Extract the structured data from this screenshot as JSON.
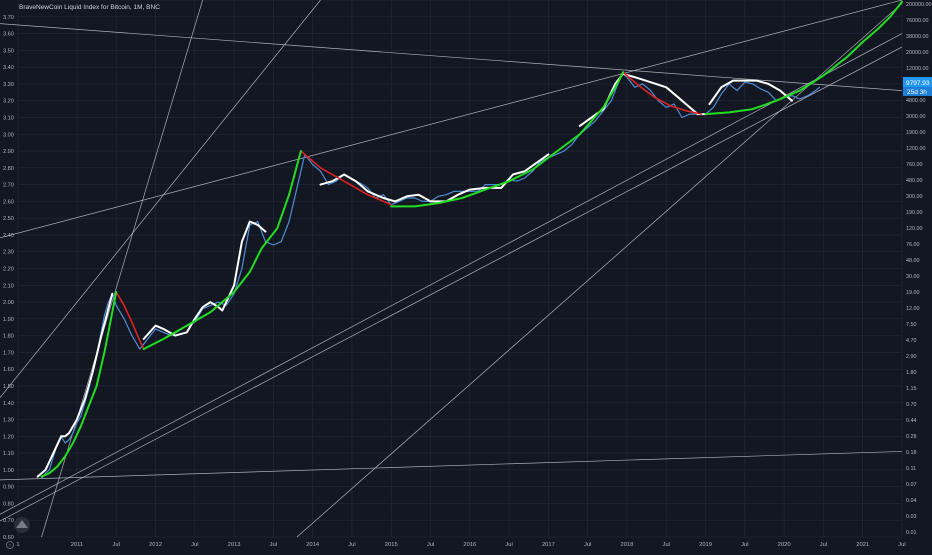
{
  "chart_data": {
    "type": "line",
    "title": "BraveNewCoin Liquid Index for Bitcoin, 1M, BNC",
    "subtitle": "",
    "xlabel": "",
    "ylabel": "",
    "grid": true,
    "colors": {
      "background": "#131722",
      "grid": "#232a3a",
      "axis_text": "#b2b5be",
      "price_line": "#4c8fd6",
      "fit_white": "#ffffff",
      "fit_green": "#22dd22",
      "fit_red": "#dd2222",
      "trendline": "#c8cbd2",
      "price_label_bg": "#2196f3"
    },
    "x_ticks": [
      {
        "label": "1",
        "t": 2010.25
      },
      {
        "label": "2011",
        "t": 2011.0
      },
      {
        "label": "Jul",
        "t": 2011.5
      },
      {
        "label": "2012",
        "t": 2012.0
      },
      {
        "label": "Jul",
        "t": 2012.5
      },
      {
        "label": "2013",
        "t": 2013.0
      },
      {
        "label": "Jul",
        "t": 2013.5
      },
      {
        "label": "2014",
        "t": 2014.0
      },
      {
        "label": "Jul",
        "t": 2014.5
      },
      {
        "label": "2015",
        "t": 2015.0
      },
      {
        "label": "Jul",
        "t": 2015.5
      },
      {
        "label": "2016",
        "t": 2016.0
      },
      {
        "label": "Jul",
        "t": 2016.5
      },
      {
        "label": "2017",
        "t": 2017.0
      },
      {
        "label": "Jul",
        "t": 2017.5
      },
      {
        "label": "2018",
        "t": 2018.0
      },
      {
        "label": "Jul",
        "t": 2018.5
      },
      {
        "label": "2019",
        "t": 2019.0
      },
      {
        "label": "Jul",
        "t": 2019.5
      },
      {
        "label": "2020",
        "t": 2020.0
      },
      {
        "label": "Jul",
        "t": 2020.5
      },
      {
        "label": "2021",
        "t": 2021.0
      },
      {
        "label": "Jul",
        "t": 2021.5
      }
    ],
    "xlim": [
      2010.25,
      2021.5
    ],
    "left_axis": {
      "ylim": [
        0.6,
        3.8
      ],
      "ticks": [
        "0.60",
        "0.70",
        "0.80",
        "0.90",
        "1.00",
        "1.10",
        "1.20",
        "1.30",
        "1.40",
        "1.50",
        "1.60",
        "1.70",
        "1.80",
        "1.90",
        "2.00",
        "2.10",
        "2.20",
        "2.30",
        "2.40",
        "2.50",
        "2.60",
        "2.70",
        "2.80",
        "2.90",
        "3.00",
        "3.10",
        "3.20",
        "3.30",
        "3.40",
        "3.50",
        "3.60",
        "3.70",
        "3.80"
      ]
    },
    "right_axis": {
      "scale": "log",
      "ticks": [
        "200000.00",
        "76000.00",
        "38000.00",
        "20000.00",
        "12000.00",
        "8000.00",
        "4800.00",
        "3000.00",
        "1900.00",
        "1200.00",
        "760.00",
        "480.00",
        "300.00",
        "190.00",
        "120.00",
        "76.00",
        "48.00",
        "30.00",
        "19.00",
        "12.00",
        "7.50",
        "4.70",
        "2.90",
        "1.80",
        "1.15",
        "0.70",
        "0.44",
        "0.28",
        "0.18",
        "0.11",
        "0.07",
        "0.04",
        "0.03",
        "0.01"
      ],
      "price_label": "9797.93",
      "time_label": "25d 3h"
    },
    "series": [
      {
        "line": "price",
        "x": [
          2010.55,
          2010.6,
          2010.65,
          2010.7,
          2010.75,
          2010.8,
          2010.85,
          2010.9,
          2010.95,
          2011.0,
          2011.05,
          2011.1,
          2011.15,
          2011.2,
          2011.25,
          2011.3,
          2011.35,
          2011.4,
          2011.45,
          2011.5,
          2011.6,
          2011.7,
          2011.8,
          2011.9,
          2012.0,
          2012.1,
          2012.2,
          2012.3,
          2012.4,
          2012.5,
          2012.6,
          2012.7,
          2012.8,
          2012.9,
          2013.0,
          2013.1,
          2013.2,
          2013.3,
          2013.4,
          2013.5,
          2013.6,
          2013.7,
          2013.8,
          2013.9,
          2014.0,
          2014.1,
          2014.2,
          2014.3,
          2014.4,
          2014.5,
          2014.6,
          2014.7,
          2014.8,
          2014.9,
          2015.0,
          2015.1,
          2015.2,
          2015.3,
          2015.4,
          2015.5,
          2015.6,
          2015.7,
          2015.8,
          2015.9,
          2016.0,
          2016.1,
          2016.2,
          2016.3,
          2016.4,
          2016.5,
          2016.6,
          2016.7,
          2016.8,
          2016.9,
          2017.0,
          2017.1,
          2017.2,
          2017.3,
          2017.4,
          2017.5,
          2017.6,
          2017.7,
          2017.8,
          2017.9,
          2017.95,
          2018.0,
          2018.1,
          2018.2,
          2018.3,
          2018.4,
          2018.5,
          2018.6,
          2018.7,
          2018.8,
          2018.9,
          2019.0,
          2019.1,
          2019.2,
          2019.3,
          2019.4,
          2019.5,
          2019.6,
          2019.7,
          2019.8,
          2019.9,
          2020.0,
          2020.1,
          2020.2,
          2020.3,
          2020.4,
          2020.45
        ],
        "y": [
          0.95,
          0.98,
          1.0,
          1.08,
          1.15,
          1.2,
          1.16,
          1.18,
          1.22,
          1.28,
          1.32,
          1.4,
          1.48,
          1.58,
          1.68,
          1.8,
          1.92,
          2.0,
          2.05,
          1.98,
          1.9,
          1.8,
          1.72,
          1.78,
          1.84,
          1.82,
          1.8,
          1.83,
          1.86,
          1.88,
          1.96,
          1.98,
          2.0,
          1.98,
          2.05,
          2.2,
          2.46,
          2.48,
          2.36,
          2.34,
          2.36,
          2.48,
          2.68,
          2.88,
          2.82,
          2.78,
          2.7,
          2.72,
          2.76,
          2.73,
          2.71,
          2.68,
          2.62,
          2.64,
          2.58,
          2.6,
          2.62,
          2.62,
          2.6,
          2.6,
          2.63,
          2.64,
          2.66,
          2.66,
          2.66,
          2.66,
          2.7,
          2.7,
          2.7,
          2.73,
          2.72,
          2.74,
          2.78,
          2.84,
          2.86,
          2.88,
          2.9,
          2.94,
          3.0,
          3.04,
          3.08,
          3.14,
          3.2,
          3.32,
          3.36,
          3.34,
          3.28,
          3.3,
          3.26,
          3.2,
          3.16,
          3.18,
          3.1,
          3.12,
          3.12,
          3.12,
          3.16,
          3.24,
          3.3,
          3.26,
          3.31,
          3.3,
          3.27,
          3.25,
          3.2,
          3.22,
          3.23,
          3.21,
          3.23,
          3.26,
          3.28
        ]
      },
      {
        "line": "white_fit_1",
        "x": [
          2010.5,
          2010.6,
          2010.7,
          2010.8,
          2010.85,
          2010.9,
          2011.0,
          2011.1,
          2011.2,
          2011.3,
          2011.4,
          2011.45
        ],
        "y": [
          0.96,
          1.0,
          1.1,
          1.2,
          1.2,
          1.22,
          1.3,
          1.42,
          1.58,
          1.78,
          1.96,
          2.05
        ]
      },
      {
        "line": "white_fit_2",
        "x": [
          2011.85,
          2012.0,
          2012.1,
          2012.25,
          2012.4,
          2012.5,
          2012.6,
          2012.7,
          2012.8,
          2012.85,
          2013.0,
          2013.1,
          2013.2,
          2013.3,
          2013.4
        ],
        "y": [
          1.78,
          1.86,
          1.84,
          1.8,
          1.82,
          1.9,
          1.97,
          2.0,
          1.97,
          1.95,
          2.1,
          2.36,
          2.48,
          2.46,
          2.42
        ]
      },
      {
        "line": "white_fit_3",
        "x": [
          2014.1,
          2014.25,
          2014.4,
          2014.55,
          2014.7,
          2014.9,
          2015.05,
          2015.2,
          2015.35,
          2015.5,
          2015.7,
          2015.85,
          2016.0,
          2016.2,
          2016.4,
          2016.55,
          2016.7,
          2016.85,
          2017.0
        ],
        "y": [
          2.7,
          2.72,
          2.76,
          2.72,
          2.66,
          2.62,
          2.6,
          2.63,
          2.64,
          2.6,
          2.6,
          2.64,
          2.67,
          2.68,
          2.68,
          2.76,
          2.78,
          2.83,
          2.88
        ]
      },
      {
        "line": "white_fit_4",
        "x": [
          2017.4,
          2017.55,
          2017.7,
          2017.85,
          2017.95,
          2018.1,
          2018.3,
          2018.5,
          2018.65,
          2018.8,
          2018.9,
          2019.0
        ],
        "y": [
          3.05,
          3.1,
          3.15,
          3.3,
          3.36,
          3.34,
          3.31,
          3.28,
          3.22,
          3.16,
          3.12,
          3.12
        ]
      },
      {
        "line": "white_fit_5",
        "x": [
          2019.05,
          2019.2,
          2019.35,
          2019.5,
          2019.65,
          2019.8,
          2019.95,
          2020.1
        ],
        "y": [
          3.18,
          3.28,
          3.32,
          3.32,
          3.32,
          3.3,
          3.26,
          3.2
        ]
      },
      {
        "line": "green_fit_1",
        "x": [
          2010.55,
          2010.65,
          2010.75,
          2010.85,
          2010.95,
          2011.05,
          2011.15,
          2011.25,
          2011.3,
          2011.35,
          2011.4,
          2011.45,
          2011.5
        ],
        "y": [
          0.96,
          0.98,
          1.02,
          1.08,
          1.16,
          1.26,
          1.38,
          1.5,
          1.6,
          1.7,
          1.82,
          1.94,
          2.06
        ]
      },
      {
        "line": "green_fit_2",
        "x": [
          2011.85,
          2012.1,
          2012.4,
          2012.7,
          2013.0,
          2013.2,
          2013.35,
          2013.55,
          2013.7,
          2013.85
        ],
        "y": [
          1.72,
          1.78,
          1.86,
          1.94,
          2.06,
          2.18,
          2.32,
          2.44,
          2.64,
          2.9
        ]
      },
      {
        "line": "green_fit_3",
        "x": [
          2015.0,
          2015.3,
          2015.6,
          2015.9,
          2016.2,
          2016.5,
          2016.8,
          2017.0,
          2017.2,
          2017.4,
          2017.55,
          2017.7,
          2017.8,
          2017.9,
          2017.95
        ],
        "y": [
          2.57,
          2.57,
          2.59,
          2.62,
          2.67,
          2.72,
          2.79,
          2.86,
          2.93,
          3.0,
          3.08,
          3.16,
          3.24,
          3.32,
          3.37
        ]
      },
      {
        "line": "green_fit_4",
        "x": [
          2019.0,
          2019.3,
          2019.6,
          2019.9,
          2020.2,
          2020.5,
          2020.8,
          2021.0,
          2021.2,
          2021.35,
          2021.45,
          2021.5
        ],
        "y": [
          3.12,
          3.13,
          3.15,
          3.2,
          3.26,
          3.35,
          3.46,
          3.55,
          3.63,
          3.7,
          3.76,
          3.79
        ]
      },
      {
        "line": "red_fit_1",
        "x": [
          2011.5,
          2011.6,
          2011.7,
          2011.8,
          2011.85
        ],
        "y": [
          2.06,
          1.98,
          1.88,
          1.77,
          1.72
        ]
      },
      {
        "line": "red_fit_2",
        "x": [
          2013.85,
          2014.1,
          2014.4,
          2014.7,
          2015.0
        ],
        "y": [
          2.9,
          2.8,
          2.72,
          2.64,
          2.58
        ]
      },
      {
        "line": "red_fit_3",
        "x": [
          2017.95,
          2018.15,
          2018.35,
          2018.55,
          2018.75,
          2018.95
        ],
        "y": [
          3.37,
          3.29,
          3.22,
          3.17,
          3.14,
          3.12
        ]
      }
    ],
    "trendlines": [
      {
        "x1": 2009.9,
        "y1": 1.36,
        "x2": 2014.1,
        "y2": 3.8
      },
      {
        "x1": 2010.0,
        "y1": 2.38,
        "x2": 2021.5,
        "y2": 3.8
      },
      {
        "x1": 2010.0,
        "y1": 3.66,
        "x2": 2021.5,
        "y2": 3.26
      },
      {
        "x1": 2010.0,
        "y1": 0.69,
        "x2": 2021.5,
        "y2": 3.52
      },
      {
        "x1": 2010.0,
        "y1": 0.73,
        "x2": 2021.5,
        "y2": 3.6
      },
      {
        "x1": 2010.0,
        "y1": 0.94,
        "x2": 2021.5,
        "y2": 1.11
      },
      {
        "x1": 2010.55,
        "y1": 0.6,
        "x2": 2012.6,
        "y2": 3.8
      },
      {
        "x1": 2013.8,
        "y1": 0.6,
        "x2": 2021.5,
        "y2": 3.78
      }
    ]
  }
}
